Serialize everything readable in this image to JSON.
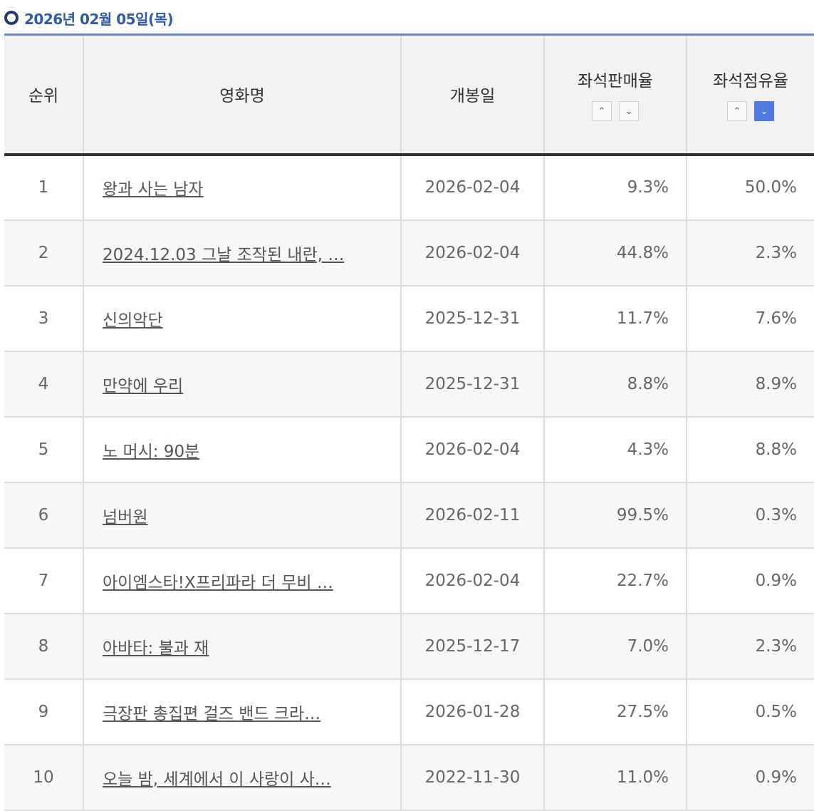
{
  "header": {
    "date_label": "2026년 02월 05일(목)"
  },
  "table": {
    "columns": {
      "rank": "순위",
      "title": "영화명",
      "release": "개봉일",
      "sales_rate": "좌석판매율",
      "share_rate": "좌석점유율"
    },
    "sort": {
      "sales_asc": "^",
      "sales_desc": "v",
      "share_asc": "^",
      "share_desc": "v",
      "active": "share_desc"
    },
    "rows": [
      {
        "rank": "1",
        "title": "왕과 사는 남자",
        "release": "2026-02-04",
        "sales": "9.3%",
        "share": "50.0%"
      },
      {
        "rank": "2",
        "title": "2024.12.03 그날 조작된 내란, …",
        "release": "2026-02-04",
        "sales": "44.8%",
        "share": "2.3%"
      },
      {
        "rank": "3",
        "title": "신의악단",
        "release": "2025-12-31",
        "sales": "11.7%",
        "share": "7.6%"
      },
      {
        "rank": "4",
        "title": "만약에 우리",
        "release": "2025-12-31",
        "sales": "8.8%",
        "share": "8.9%"
      },
      {
        "rank": "5",
        "title": "노 머시: 90분",
        "release": "2026-02-04",
        "sales": "4.3%",
        "share": "8.8%"
      },
      {
        "rank": "6",
        "title": "넘버원",
        "release": "2026-02-11",
        "sales": "99.5%",
        "share": "0.3%"
      },
      {
        "rank": "7",
        "title": "아이엠스타!X프리파라 더 무비 …",
        "release": "2026-02-04",
        "sales": "22.7%",
        "share": "0.9%"
      },
      {
        "rank": "8",
        "title": "아바타: 불과 재",
        "release": "2025-12-17",
        "sales": "7.0%",
        "share": "2.3%"
      },
      {
        "rank": "9",
        "title": "극장판 총집편 걸즈 밴드 크라…",
        "release": "2026-01-28",
        "sales": "27.5%",
        "share": "0.5%"
      },
      {
        "rank": "10",
        "title": "오늘 밤, 세계에서 이 사랑이 사…",
        "release": "2022-11-30",
        "sales": "11.0%",
        "share": "0.9%"
      }
    ]
  },
  "colors": {
    "accent": "#2f5aa8",
    "sort_active": "#4f7be0",
    "header_bg": "#f2f2f2"
  }
}
